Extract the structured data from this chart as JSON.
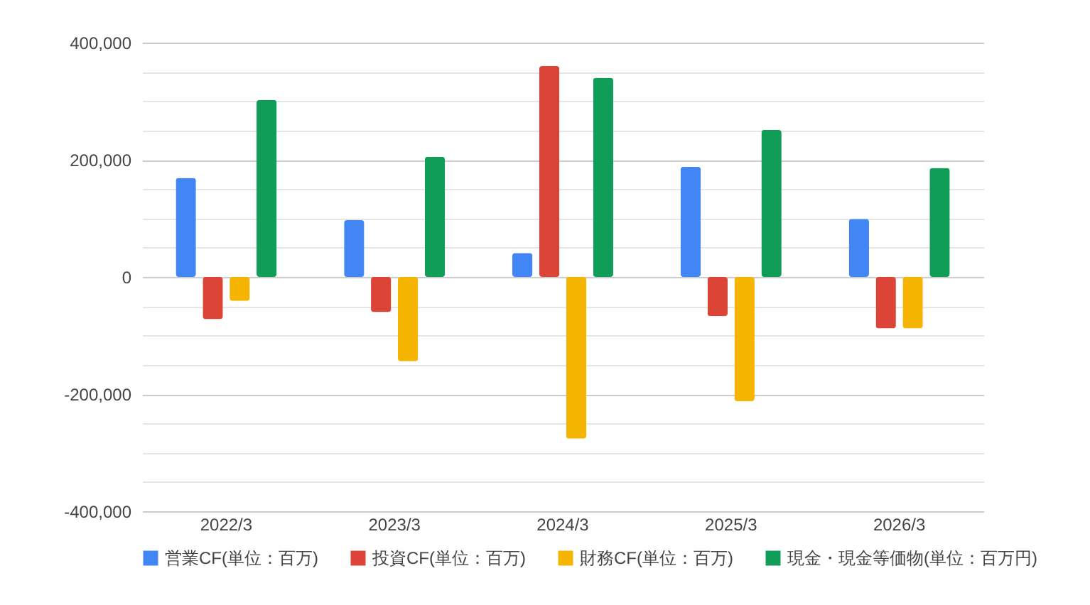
{
  "chart_data": {
    "type": "bar",
    "categories": [
      "2022/3",
      "2023/3",
      "2024/3",
      "2025/3",
      "2026/3"
    ],
    "series": [
      {
        "name": "営業CF(単位：百万)",
        "color": "#4285f4",
        "values": [
          169000,
          97000,
          41000,
          188000,
          99000
        ]
      },
      {
        "name": "投資CF(単位：百万)",
        "color": "#db4437",
        "values": [
          -72000,
          -60000,
          360000,
          -67000,
          -88000
        ]
      },
      {
        "name": "財務CF(単位：百万)",
        "color": "#f4b400",
        "values": [
          -41000,
          -144000,
          -276000,
          -212000,
          -88000
        ]
      },
      {
        "name": "現金・現金等価物(単位：百万円)",
        "color": "#0f9d58",
        "values": [
          302000,
          205000,
          340000,
          251000,
          186000
        ]
      }
    ],
    "ylim": [
      -400000,
      400000
    ],
    "yticks": [
      {
        "value": -400000,
        "label": "-400,000"
      },
      {
        "value": -350000,
        "label": null
      },
      {
        "value": -300000,
        "label": null
      },
      {
        "value": -250000,
        "label": null
      },
      {
        "value": -200000,
        "label": "-200,000"
      },
      {
        "value": -150000,
        "label": null
      },
      {
        "value": -100000,
        "label": null
      },
      {
        "value": -50000,
        "label": null
      },
      0,
      {
        "value": 50000,
        "label": null
      },
      {
        "value": 100000,
        "label": null
      },
      {
        "value": 150000,
        "label": null
      },
      {
        "value": 200000,
        "label": "200,000"
      },
      {
        "value": 250000,
        "label": null
      },
      {
        "value": 300000,
        "label": null
      },
      {
        "value": 350000,
        "label": null
      },
      {
        "value": 400000,
        "label": "400,000"
      }
    ],
    "grid": true,
    "legend": "bottom"
  }
}
